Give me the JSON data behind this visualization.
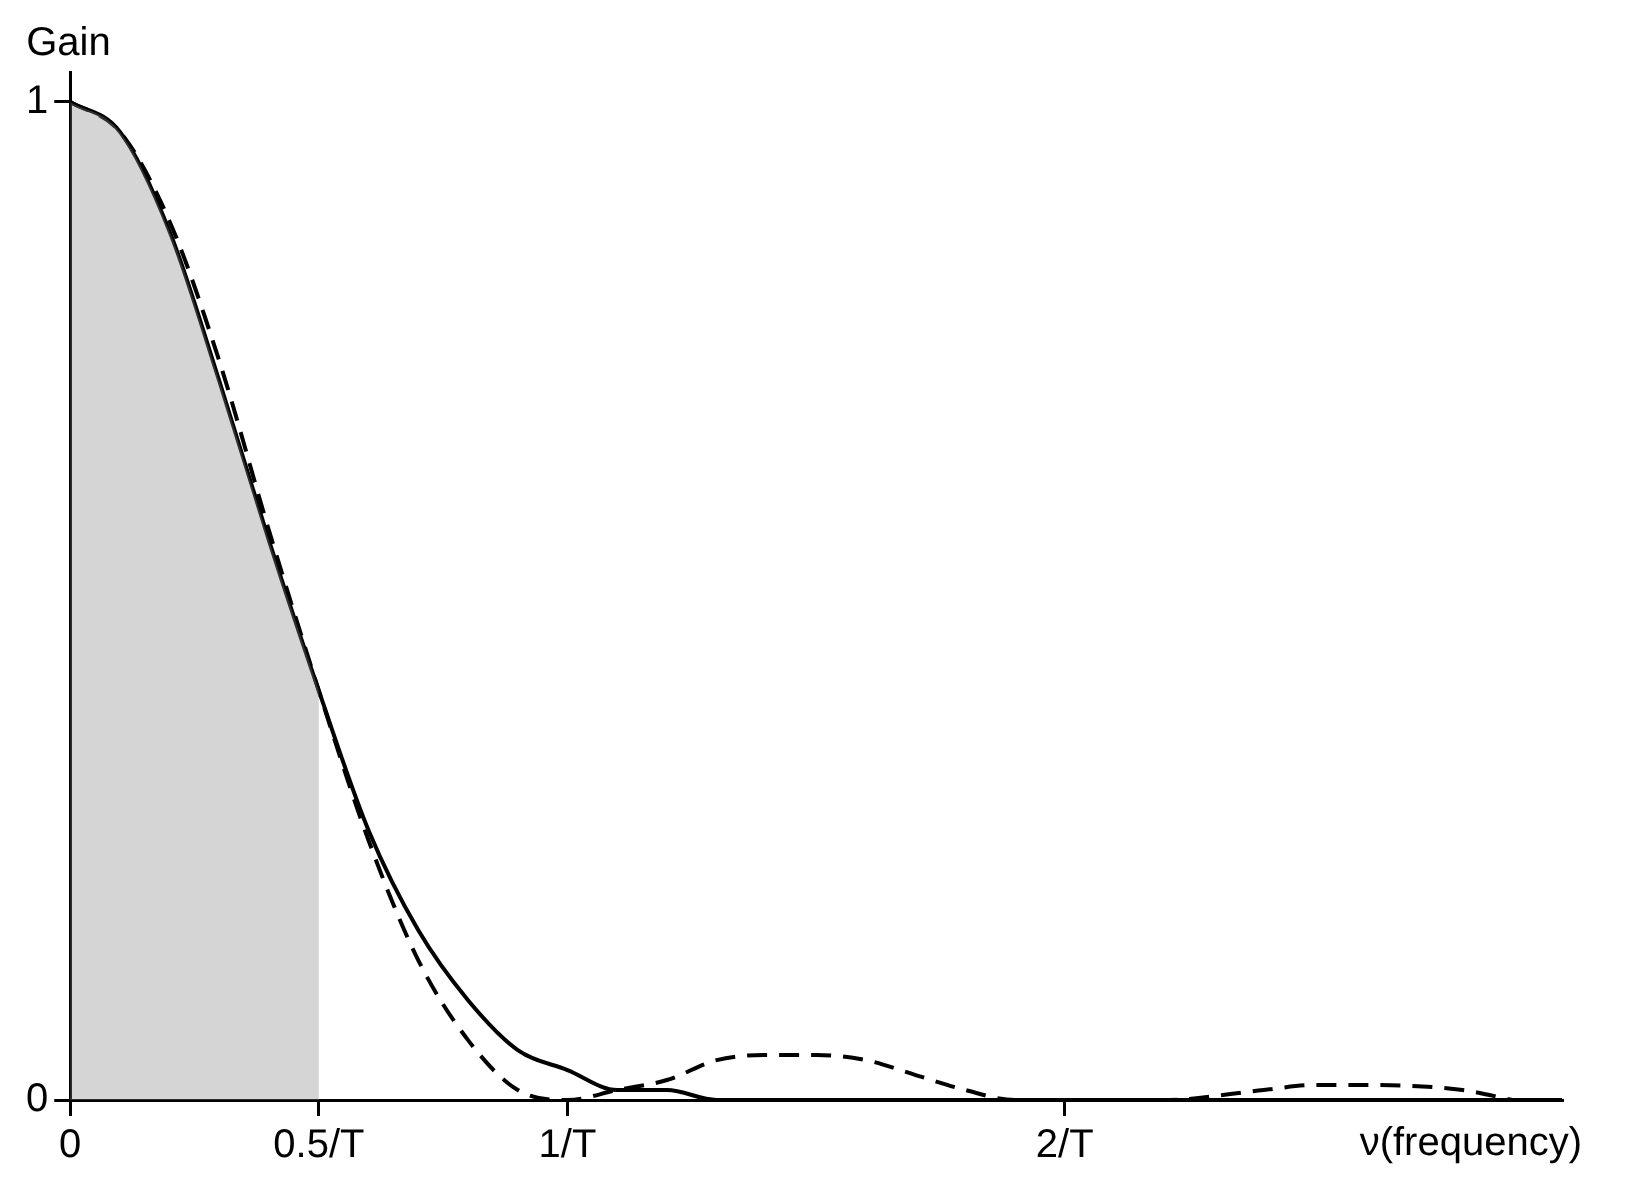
{
  "chart_data": {
    "type": "line",
    "ylabel": "Gain",
    "xlabel": "ν(frequency)",
    "xlim": [
      0,
      3.0
    ],
    "xticks": [
      0,
      {
        "value": 0.5,
        "label": "0.5/T"
      },
      {
        "value": 1,
        "label": "1/T"
      },
      {
        "value": 2,
        "label": "2/T"
      }
    ],
    "ylim": [
      0,
      1.03
    ],
    "yticks": [
      0,
      1
    ],
    "marker": "none",
    "legend": false,
    "series": [
      {
        "type": "area",
        "color": "#888888",
        "x": [
          0,
          0.1,
          0.2,
          0.3,
          0.4,
          0.5
        ],
        "values": [
          1,
          0.97,
          0.87,
          0.72,
          0.56,
          0.41
        ]
      },
      {
        "color": "#000000",
        "line_style": "solid",
        "x": [
          0,
          0.1,
          0.2,
          0.3,
          0.4,
          0.5,
          0.6,
          0.7,
          0.8,
          0.9,
          1.0,
          1.1,
          1.2,
          1.3,
          1.4,
          3.0
        ],
        "values": [
          1,
          0.97,
          0.87,
          0.72,
          0.56,
          0.41,
          0.27,
          0.17,
          0.1,
          0.05,
          0.03,
          0.01,
          0.01,
          0,
          0,
          0
        ]
      },
      {
        "color": "#000000",
        "line_style": "dashed",
        "x": [
          0,
          0.1,
          0.2,
          0.3,
          0.4,
          0.5,
          0.6,
          0.7,
          0.8,
          0.9,
          1.0,
          1.1,
          1.2,
          1.3,
          1.4,
          1.5,
          1.6,
          1.7,
          1.8,
          1.9,
          2.0,
          2.2,
          2.4,
          2.5,
          2.6,
          2.8,
          2.9
        ],
        "values": [
          1,
          0.97,
          0.88,
          0.74,
          0.57,
          0.41,
          0.26,
          0.14,
          0.06,
          0.01,
          0,
          0.01,
          0.02,
          0.04,
          0.045,
          0.045,
          0.04,
          0.025,
          0.01,
          0,
          0,
          0,
          0.01,
          0.015,
          0.015,
          0.01,
          0
        ]
      }
    ]
  }
}
